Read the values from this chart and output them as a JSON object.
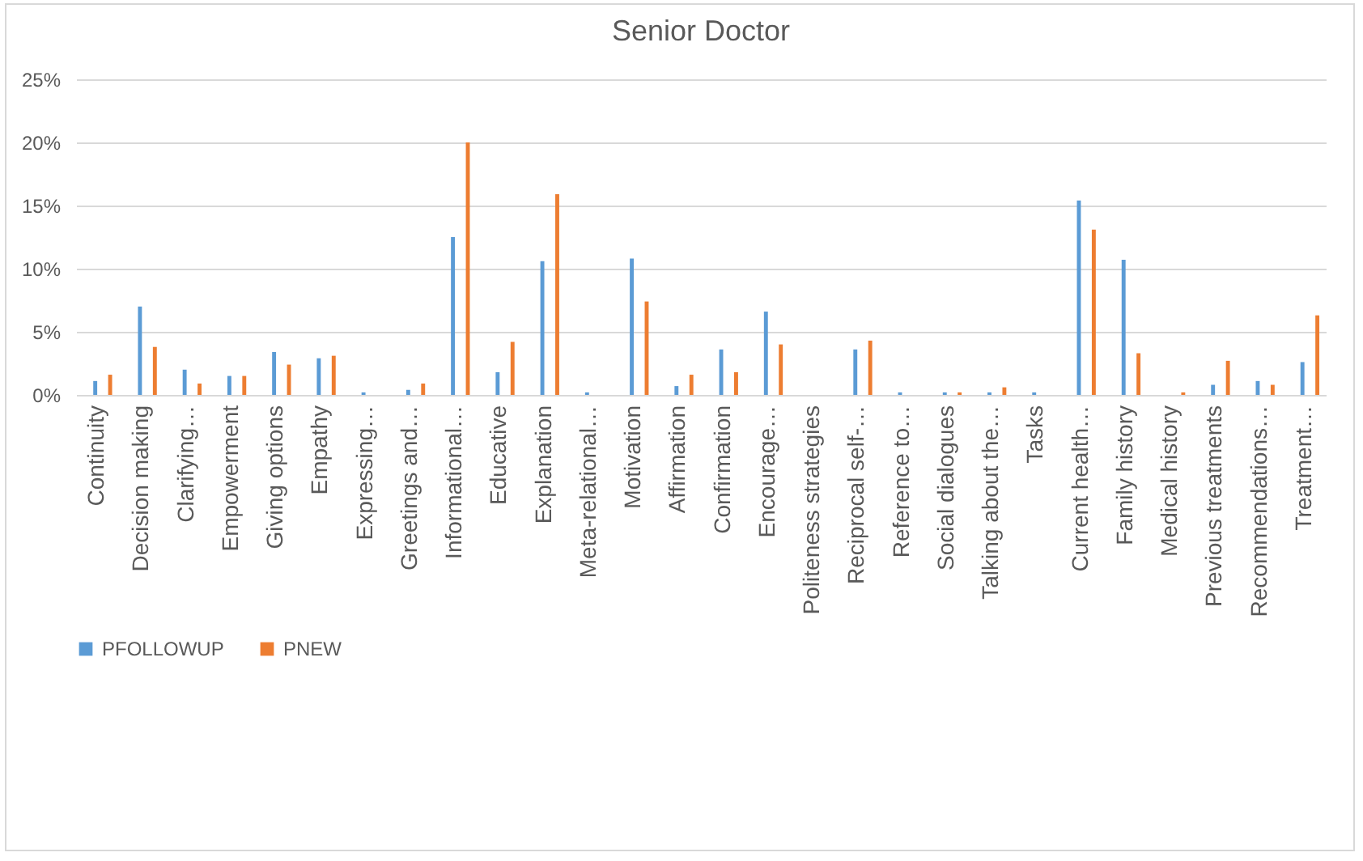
{
  "chart_data": {
    "type": "bar",
    "title": "Senior Doctor",
    "categories": [
      "Continuity",
      "Decision making",
      "Clarifying…",
      "Empowerment",
      "Giving options",
      "Empathy",
      "Expressing…",
      "Greetings and…",
      "Informational…",
      "Educative",
      "Explanation",
      "Meta-relational…",
      "Motivation",
      "Affirmation",
      "Confirmation",
      "Encourage…",
      "Politeness strategies",
      "Reciprocal self-…",
      "Reference to…",
      "Social dialogues",
      "Talking about the…",
      "Tasks",
      "Current health…",
      "Family history",
      "Medical history",
      "Previous treatments",
      "Recommendations…",
      "Treatment…"
    ],
    "series": [
      {
        "name": "PFOLLOWUP",
        "color": "#5b9bd5",
        "values": [
          1.1,
          7.0,
          2.0,
          1.5,
          3.4,
          2.9,
          0.2,
          0.4,
          12.5,
          1.8,
          10.6,
          0.2,
          10.8,
          0.7,
          3.6,
          6.6,
          0,
          3.6,
          0.2,
          0.2,
          0.2,
          0.2,
          15.4,
          10.7,
          0,
          0.8,
          1.1,
          2.6
        ]
      },
      {
        "name": "PNEW",
        "color": "#ed7d31",
        "values": [
          1.6,
          3.8,
          0.9,
          1.5,
          2.4,
          3.1,
          0,
          0.9,
          20.0,
          4.2,
          15.9,
          0,
          7.4,
          1.6,
          1.8,
          4.0,
          0,
          4.3,
          0,
          0.2,
          0.6,
          0,
          13.1,
          3.3,
          0.2,
          2.7,
          0.8,
          6.3
        ]
      }
    ],
    "ylim": [
      0,
      25
    ],
    "yticks": [
      {
        "value": 0,
        "label": "0%"
      },
      {
        "value": 5,
        "label": "5%"
      },
      {
        "value": 10,
        "label": "10%"
      },
      {
        "value": 15,
        "label": "15%"
      },
      {
        "value": 20,
        "label": "20%"
      },
      {
        "value": 25,
        "label": "25%"
      }
    ],
    "grid": "y",
    "legend": "bottom"
  }
}
